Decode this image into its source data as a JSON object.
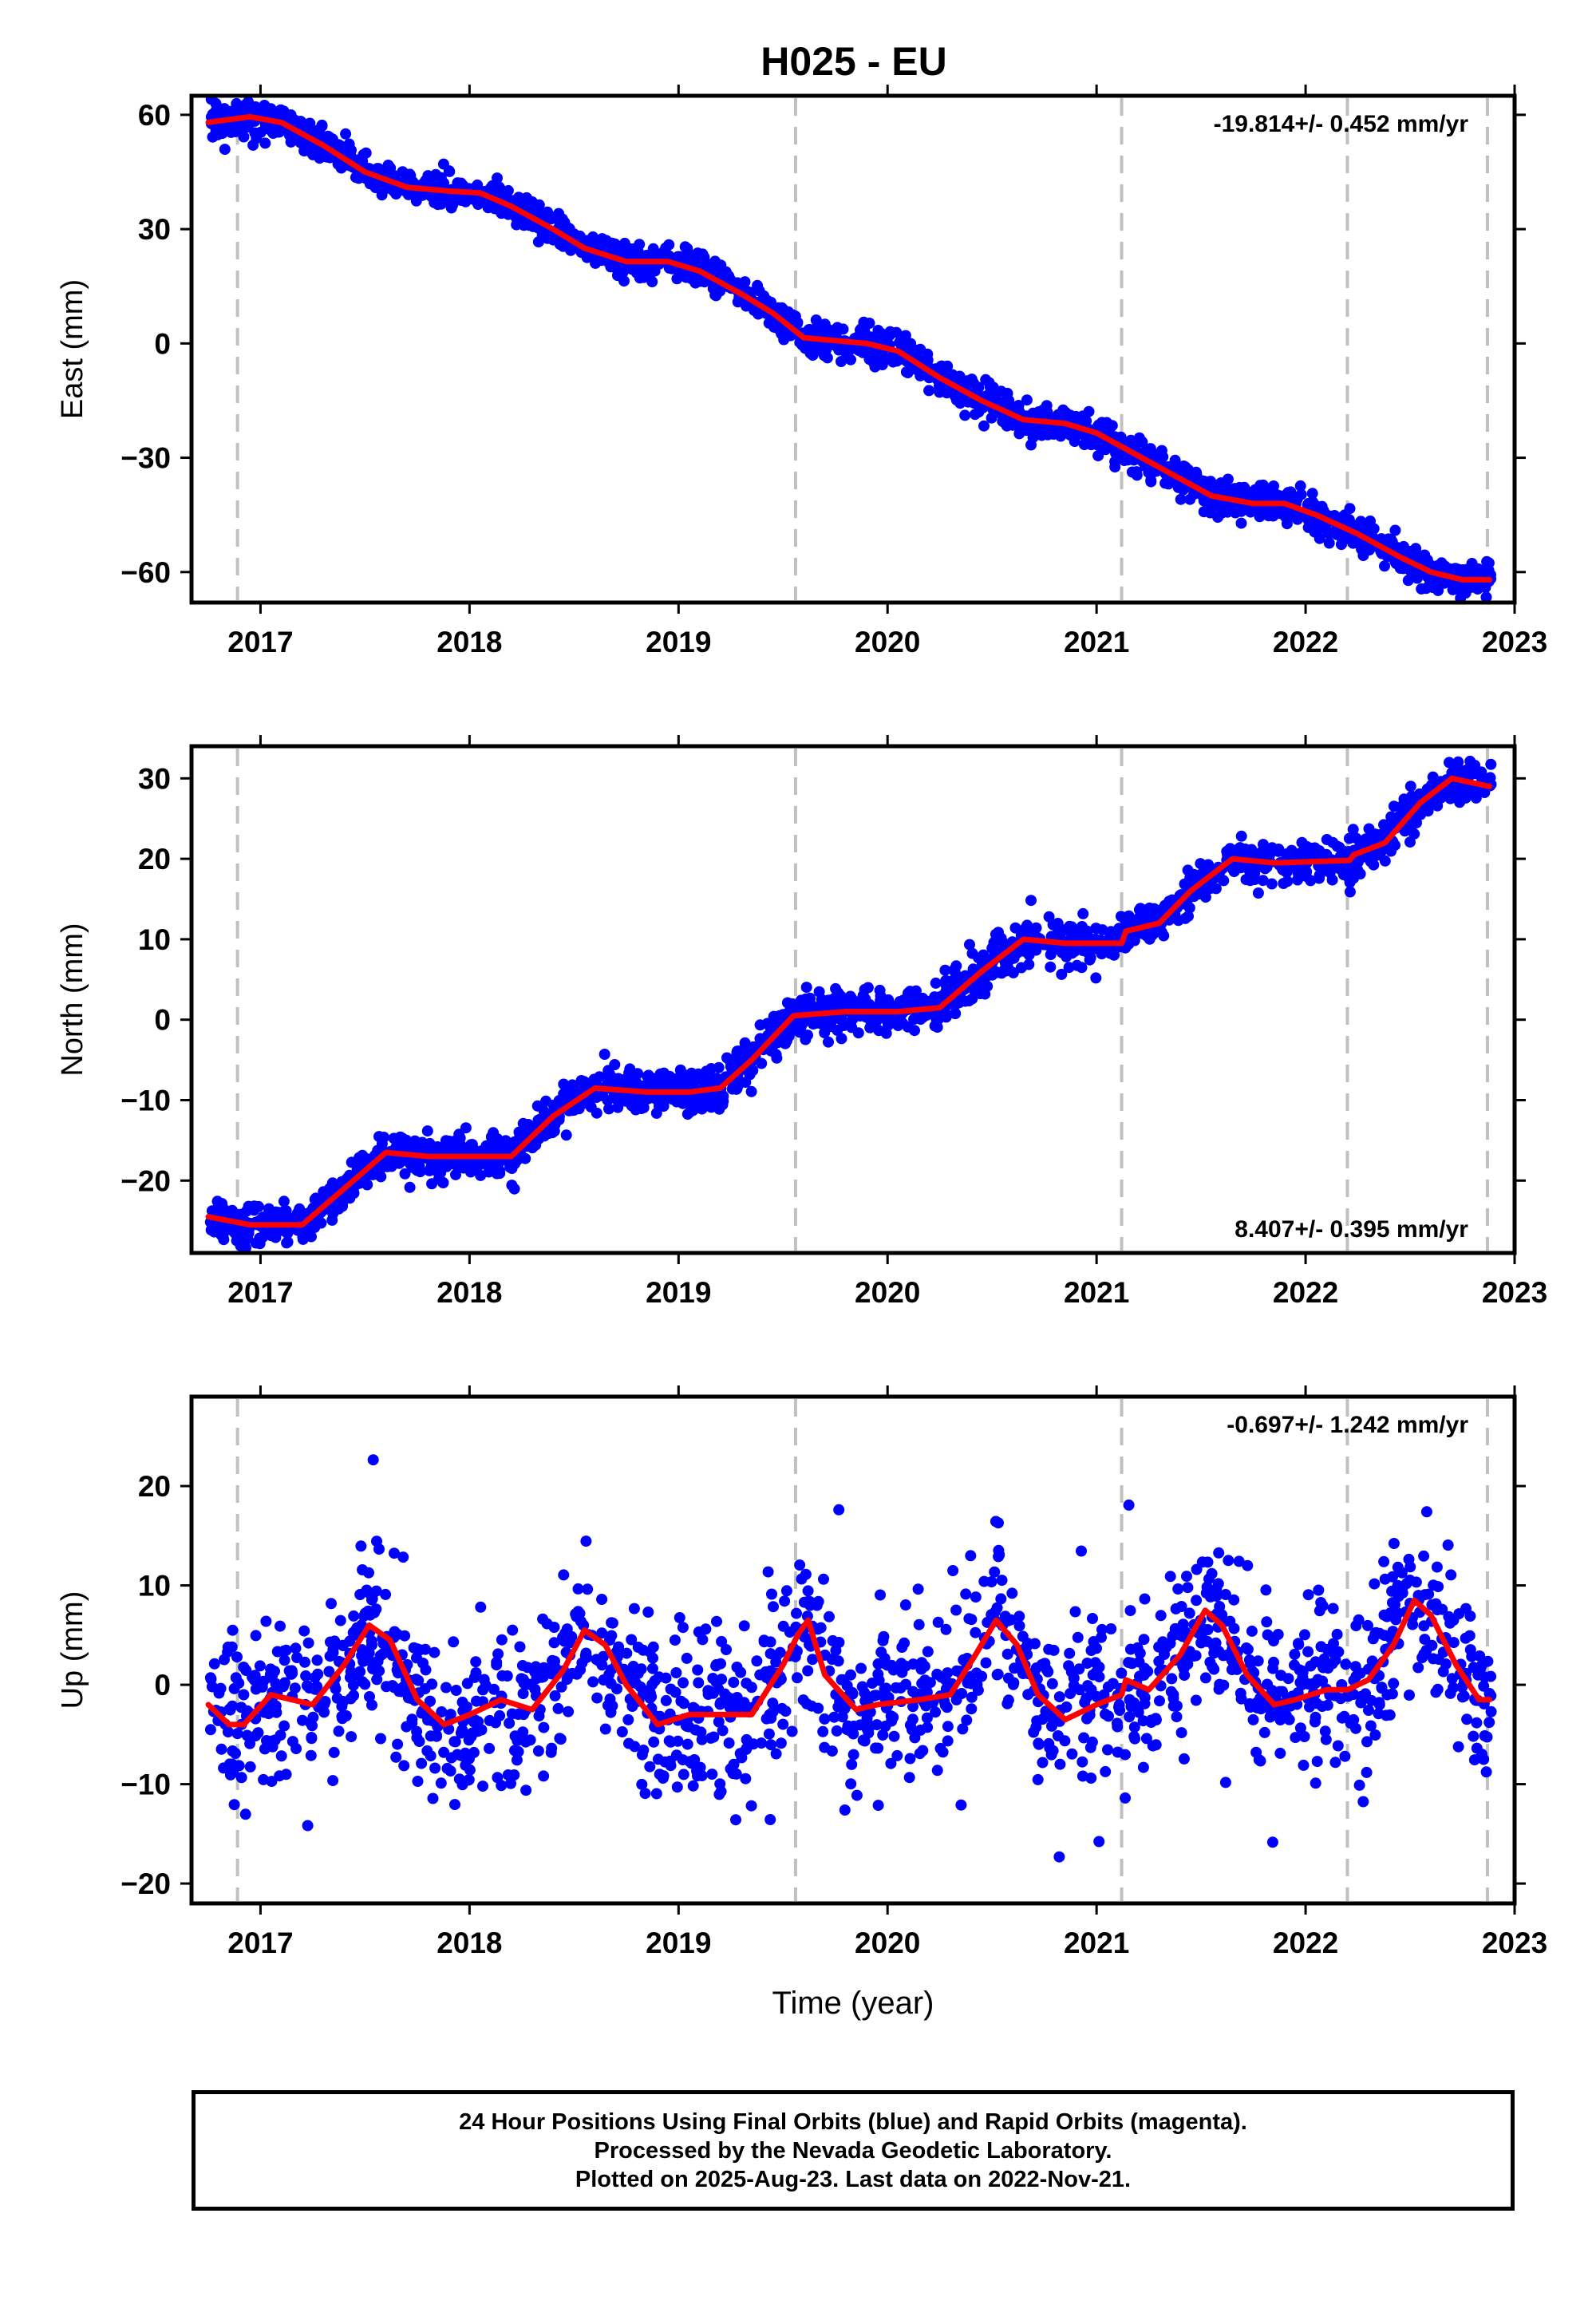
{
  "title": "H025 - EU",
  "chart_data": [
    {
      "type": "scatter",
      "component": "east",
      "ylabel": "East (mm)",
      "ylim": [
        -68,
        65
      ],
      "yticks": [
        60,
        30,
        0,
        -30,
        -60
      ],
      "ytick_labels": [
        "60",
        "30",
        "0",
        "−30",
        "−60"
      ],
      "rate_label": "-19.814+/- 0.452 mm/yr",
      "rate_position": "top-right",
      "fit_line": [
        [
          2016.75,
          58
        ],
        [
          2016.95,
          59.5
        ],
        [
          2017.1,
          58
        ],
        [
          2017.3,
          52
        ],
        [
          2017.5,
          45
        ],
        [
          2017.7,
          41
        ],
        [
          2017.9,
          40
        ],
        [
          2018.05,
          39.5
        ],
        [
          2018.2,
          36
        ],
        [
          2018.4,
          30
        ],
        [
          2018.55,
          25
        ],
        [
          2018.75,
          21.5
        ],
        [
          2018.95,
          21.5
        ],
        [
          2019.1,
          19
        ],
        [
          2019.3,
          13
        ],
        [
          2019.45,
          8
        ],
        [
          2019.6,
          1.5
        ],
        [
          2019.9,
          0
        ],
        [
          2020.05,
          -2
        ],
        [
          2020.25,
          -9
        ],
        [
          2020.45,
          -15
        ],
        [
          2020.65,
          -20
        ],
        [
          2020.85,
          -21
        ],
        [
          2021.0,
          -23.5
        ],
        [
          2021.15,
          -28
        ],
        [
          2021.35,
          -34
        ],
        [
          2021.55,
          -40
        ],
        [
          2021.75,
          -42
        ],
        [
          2021.9,
          -42
        ],
        [
          2022.05,
          -45
        ],
        [
          2022.25,
          -50
        ],
        [
          2022.45,
          -56
        ],
        [
          2022.6,
          -60
        ],
        [
          2022.75,
          -62
        ],
        [
          2022.88,
          -62
        ]
      ],
      "scatter_amplitude": 2.2
    },
    {
      "type": "scatter",
      "component": "north",
      "ylabel": "North (mm)",
      "ylim": [
        -29,
        34
      ],
      "yticks": [
        30,
        20,
        10,
        0,
        -10,
        -20
      ],
      "ytick_labels": [
        "30",
        "20",
        "10",
        "0",
        "−10",
        "−20"
      ],
      "rate_label": "8.407+/- 0.395 mm/yr",
      "rate_position": "bottom-right",
      "fit_line": [
        [
          2016.75,
          -24.5
        ],
        [
          2016.95,
          -25.5
        ],
        [
          2017.2,
          -25.5
        ],
        [
          2017.4,
          -21
        ],
        [
          2017.6,
          -16.5
        ],
        [
          2017.8,
          -17
        ],
        [
          2018.0,
          -17
        ],
        [
          2018.2,
          -17
        ],
        [
          2018.4,
          -12
        ],
        [
          2018.6,
          -8.5
        ],
        [
          2018.85,
          -9
        ],
        [
          2019.05,
          -9
        ],
        [
          2019.2,
          -8.5
        ],
        [
          2019.35,
          -5
        ],
        [
          2019.55,
          0.5
        ],
        [
          2019.8,
          1
        ],
        [
          2020.05,
          1
        ],
        [
          2020.25,
          1.5
        ],
        [
          2020.45,
          6
        ],
        [
          2020.65,
          10
        ],
        [
          2020.85,
          9.5
        ],
        [
          2021.12,
          9.5
        ],
        [
          2021.14,
          11
        ],
        [
          2021.3,
          12
        ],
        [
          2021.45,
          16
        ],
        [
          2021.65,
          20
        ],
        [
          2021.85,
          19.5
        ],
        [
          2022.21,
          19.8
        ],
        [
          2022.23,
          20.5
        ],
        [
          2022.38,
          22
        ],
        [
          2022.55,
          27
        ],
        [
          2022.7,
          30
        ],
        [
          2022.88,
          29
        ]
      ],
      "scatter_amplitude": 1.3
    },
    {
      "type": "scatter",
      "component": "up",
      "ylabel": "Up (mm)",
      "xlabel": "Time (year)",
      "ylim": [
        -22,
        29
      ],
      "yticks": [
        20,
        10,
        0,
        -10,
        -20
      ],
      "ytick_labels": [
        "20",
        "10",
        "0",
        "−10",
        "−20"
      ],
      "rate_label": "-0.697+/- 1.242 mm/yr",
      "rate_position": "top-right",
      "fit_line": [
        [
          2016.75,
          -2
        ],
        [
          2016.85,
          -4
        ],
        [
          2016.92,
          -4
        ],
        [
          2017.05,
          -1
        ],
        [
          2017.25,
          -2
        ],
        [
          2017.4,
          2
        ],
        [
          2017.52,
          6
        ],
        [
          2017.62,
          4.5
        ],
        [
          2017.75,
          -1.5
        ],
        [
          2017.88,
          -4
        ],
        [
          2018.0,
          -3
        ],
        [
          2018.15,
          -1.5
        ],
        [
          2018.3,
          -2.5
        ],
        [
          2018.45,
          1.5
        ],
        [
          2018.55,
          5.5
        ],
        [
          2018.65,
          4
        ],
        [
          2018.75,
          0
        ],
        [
          2018.9,
          -4
        ],
        [
          2019.05,
          -3
        ],
        [
          2019.2,
          -3
        ],
        [
          2019.35,
          -3
        ],
        [
          2019.5,
          2
        ],
        [
          2019.57,
          5
        ],
        [
          2019.62,
          6.5
        ],
        [
          2019.7,
          1
        ],
        [
          2019.85,
          -2.5
        ],
        [
          2019.95,
          -2
        ],
        [
          2020.15,
          -1.5
        ],
        [
          2020.3,
          -1
        ],
        [
          2020.42,
          3
        ],
        [
          2020.52,
          6.5
        ],
        [
          2020.62,
          4
        ],
        [
          2020.72,
          -1
        ],
        [
          2020.85,
          -3.5
        ],
        [
          2021.0,
          -2
        ],
        [
          2021.12,
          -1
        ],
        [
          2021.14,
          0.5
        ],
        [
          2021.25,
          -0.5
        ],
        [
          2021.4,
          3
        ],
        [
          2021.52,
          7.5
        ],
        [
          2021.6,
          6
        ],
        [
          2021.72,
          1
        ],
        [
          2021.85,
          -2
        ],
        [
          2021.95,
          -1.5
        ],
        [
          2022.1,
          -0.5
        ],
        [
          2022.2,
          -0.5
        ],
        [
          2022.3,
          0.5
        ],
        [
          2022.42,
          4
        ],
        [
          2022.52,
          8.5
        ],
        [
          2022.6,
          7
        ],
        [
          2022.72,
          2
        ],
        [
          2022.83,
          -1.5
        ],
        [
          2022.88,
          -1.5
        ]
      ],
      "scatter_amplitude": 4.0
    }
  ],
  "x_axis": {
    "xlim": [
      2016.67,
      2023.0
    ],
    "tick_labels": [
      "2017",
      "2018",
      "2019",
      "2020",
      "2021",
      "2022",
      "2023"
    ],
    "ticks": [
      2017,
      2018,
      2019,
      2020,
      2021,
      2022,
      2023
    ],
    "event_lines": [
      2016.89,
      2019.56,
      2021.12,
      2022.2,
      2022.87
    ],
    "data_start": 2016.76,
    "data_end": 2022.89
  },
  "colors": {
    "data_points": "#0000ff",
    "fit_line": "#ff0000",
    "event_lines": "#c0c0c0"
  },
  "footer": {
    "line1": "24 Hour Positions Using Final Orbits (blue) and Rapid Orbits (magenta).",
    "line2": "Processed by the Nevada Geodetic Laboratory.",
    "line3": "Plotted on 2025-Aug-23. Last data on 2022-Nov-21."
  }
}
